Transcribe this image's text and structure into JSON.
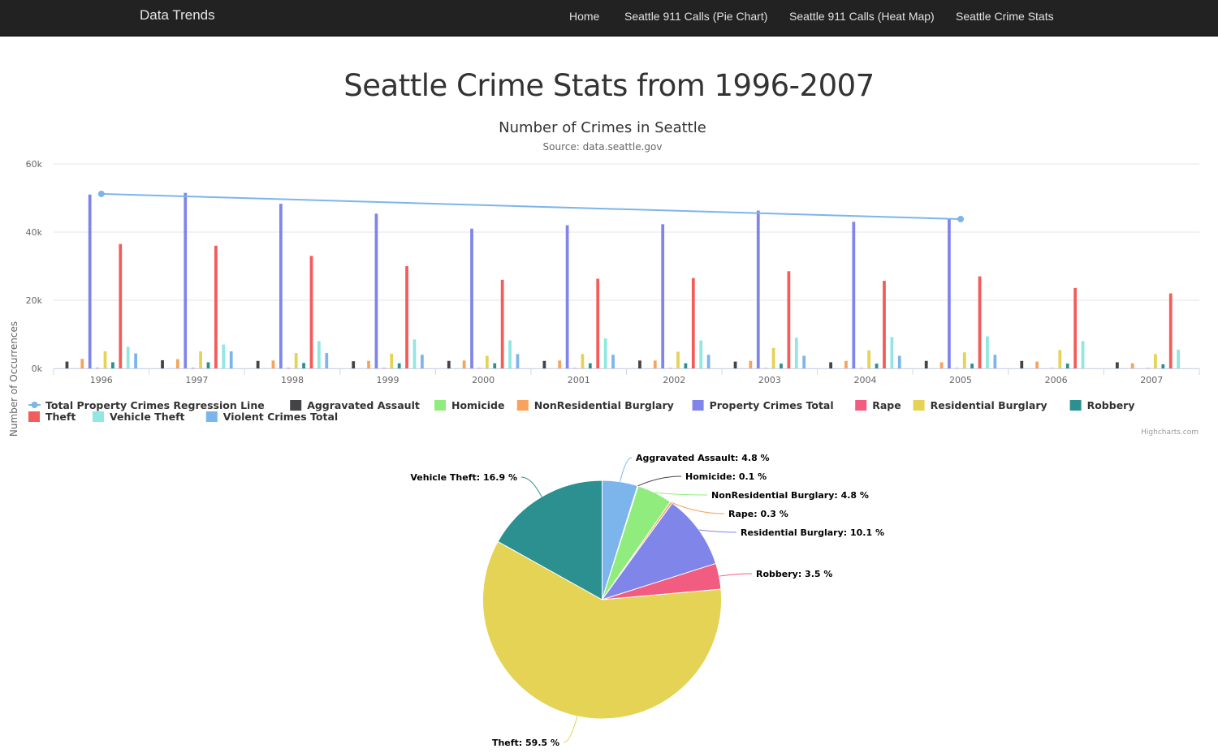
{
  "nav": {
    "brand": "Data Trends",
    "links": [
      "Home",
      "Seattle 911 Calls (Pie Chart)",
      "Seattle 911 Calls (Heat Map)",
      "Seattle Crime Stats"
    ]
  },
  "page_title": "Seattle Crime Stats from 1996-2007",
  "credits": "Highcharts.com",
  "chart_data": [
    {
      "type": "bar",
      "title": "Number of Crimes in Seattle",
      "subtitle": "Source: data.seattle.gov",
      "ylabel": "Number of Occurrences",
      "ylim": [
        0,
        60000
      ],
      "yticks": [
        "0k",
        "20k",
        "40k",
        "60k"
      ],
      "grid": true,
      "legend_position": "bottom-left",
      "categories": [
        "1996",
        "1997",
        "1998",
        "1999",
        "2000",
        "2001",
        "2002",
        "2003",
        "2004",
        "2005",
        "2006",
        "2007"
      ],
      "series": [
        {
          "name": "Total Property Crimes Regression Line",
          "type": "line",
          "color": "#7cb5ec",
          "points": [
            [
              "1996",
              51200
            ],
            [
              "2005",
              43800
            ]
          ]
        },
        {
          "name": "Aggravated Assault",
          "color": "#434348",
          "values": [
            2000,
            2400,
            2200,
            2100,
            2200,
            2200,
            2300,
            2000,
            1800,
            2200,
            2200,
            1800
          ]
        },
        {
          "name": "Homicide",
          "color": "#90ed7d",
          "values": [
            50,
            50,
            50,
            40,
            40,
            30,
            30,
            30,
            30,
            30,
            30,
            30
          ]
        },
        {
          "name": "NonResidential Burglary",
          "color": "#f7a35c",
          "values": [
            2800,
            2700,
            2300,
            2200,
            2300,
            2300,
            2300,
            2200,
            2200,
            1800,
            2000,
            1500
          ]
        },
        {
          "name": "Property Crimes Total",
          "color": "#8085e9",
          "values": [
            51000,
            51500,
            48300,
            45400,
            41000,
            42000,
            42300,
            46300,
            43000,
            43800,
            0,
            0
          ]
        },
        {
          "name": "Rape",
          "color": "#f15c80",
          "values": [
            150,
            150,
            140,
            130,
            120,
            110,
            110,
            100,
            100,
            110,
            100,
            100
          ]
        },
        {
          "name": "Residential Burglary",
          "color": "#e4d354",
          "values": [
            5000,
            5000,
            4500,
            4300,
            3700,
            4200,
            4900,
            6000,
            5300,
            4700,
            5400,
            4200
          ]
        },
        {
          "name": "Robbery",
          "color": "#2b908f",
          "values": [
            1800,
            1800,
            1600,
            1500,
            1500,
            1500,
            1500,
            1400,
            1400,
            1400,
            1400,
            1200
          ]
        },
        {
          "name": "Theft",
          "color": "#f45b5b",
          "values": [
            36500,
            36000,
            33000,
            30000,
            26000,
            26300,
            26500,
            28500,
            25700,
            27000,
            23600,
            22000
          ]
        },
        {
          "name": "Vehicle Theft",
          "color": "#91e8e1",
          "values": [
            6300,
            7000,
            8000,
            8500,
            8200,
            8800,
            8200,
            9000,
            9200,
            9400,
            8000,
            5500
          ]
        },
        {
          "name": "Violent Crimes Total",
          "color": "#7cb5ec",
          "values": [
            4400,
            5000,
            4500,
            4000,
            4200,
            4000,
            4000,
            3700,
            3700,
            4000,
            0,
            0
          ]
        }
      ]
    },
    {
      "type": "pie",
      "slices": [
        {
          "label": "Aggravated Assault",
          "value": 4.8,
          "color": "#7cb5ec"
        },
        {
          "label": "Homicide",
          "value": 0.1,
          "color": "#434348"
        },
        {
          "label": "NonResidential Burglary",
          "value": 4.8,
          "color": "#90ed7d"
        },
        {
          "label": "Rape",
          "value": 0.3,
          "color": "#f7a35c"
        },
        {
          "label": "Residential Burglary",
          "value": 10.1,
          "color": "#8085e9"
        },
        {
          "label": "Robbery",
          "value": 3.5,
          "color": "#f15c80"
        },
        {
          "label": "Theft",
          "value": 59.5,
          "color": "#e4d354"
        },
        {
          "label": "Vehicle Theft",
          "value": 16.9,
          "color": "#2b908f"
        }
      ],
      "label_suffix": " %"
    }
  ]
}
